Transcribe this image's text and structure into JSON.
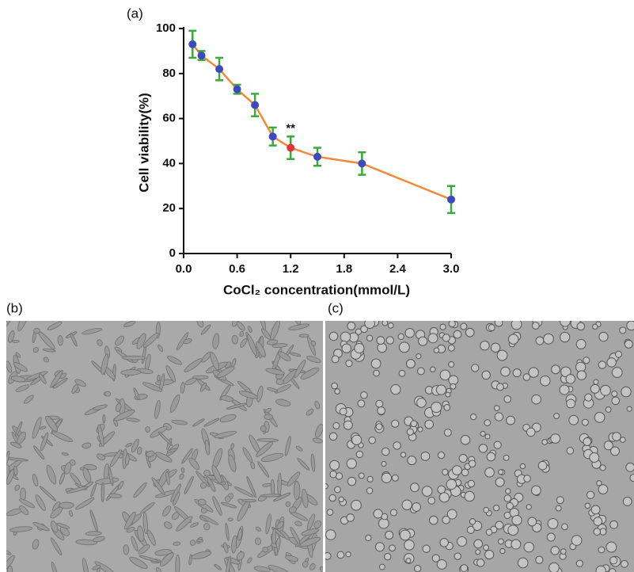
{
  "chart_data": {
    "type": "line",
    "panel_label": "(a)",
    "x_label": "CoCl₂ concentration(mmol/L)",
    "y_label": "Cell viability(%)",
    "x": [
      0.1,
      0.2,
      0.4,
      0.6,
      0.8,
      1.0,
      1.2,
      1.5,
      2.0,
      3.0
    ],
    "series": [
      {
        "color": "#f28a3c",
        "marker_color": "#3a4bbf",
        "error_color": "#3aaa3a",
        "point_colors": [
          "#3a4bbf",
          "#3a4bbf",
          "#3a4bbf",
          "#3a4bbf",
          "#3a4bbf",
          "#3a4bbf",
          "#e8323a",
          "#3a4bbf",
          "#3a4bbf",
          "#3a4bbf"
        ],
        "values": [
          93,
          88,
          82,
          73,
          66,
          52,
          47,
          43,
          40,
          24
        ],
        "errors": [
          6,
          2,
          5,
          2,
          5,
          4,
          5,
          4,
          5,
          6
        ]
      }
    ],
    "annotations": [
      {
        "text": "**",
        "x": 1.2
      }
    ],
    "xlim": [
      0,
      3
    ],
    "xticks": [
      {
        "value": 0,
        "label": "0.0"
      },
      0.6,
      1.2,
      1.8,
      2.4,
      {
        "value": 3,
        "label": "3.0"
      }
    ],
    "ylim": [
      0,
      100
    ],
    "yticks": [
      0,
      20,
      40,
      60,
      80,
      100
    ]
  },
  "images": [
    {
      "label": "(b)"
    },
    {
      "label": "(c)"
    }
  ]
}
